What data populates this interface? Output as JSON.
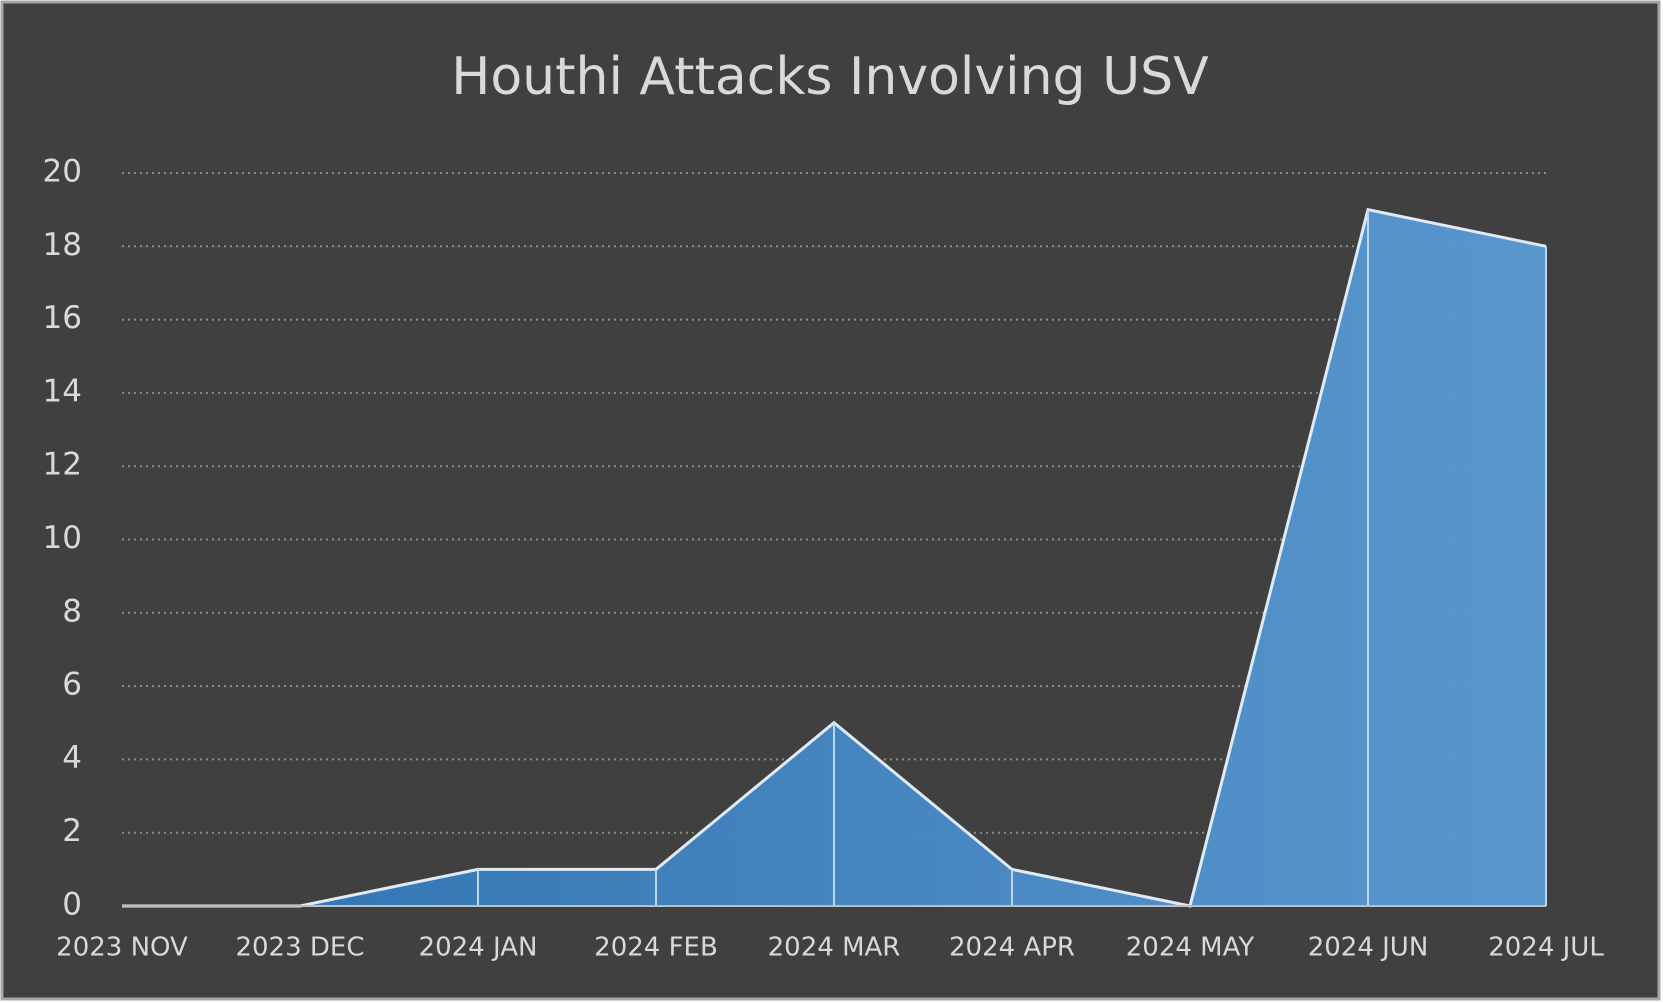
{
  "chart_data": {
    "type": "area",
    "title": "Houthi Attacks Involving USV",
    "categories": [
      "2023 NOV",
      "2023 DEC",
      "2024 JAN",
      "2024 FEB",
      "2024 MAR",
      "2024 APR",
      "2024 MAY",
      "2024 JUN",
      "2024 JUL"
    ],
    "values": [
      0,
      0,
      1,
      1,
      5,
      1,
      0,
      19,
      18
    ],
    "color": "#5b9bd5",
    "ylim": [
      0,
      20
    ],
    "yticks": [
      0,
      2,
      4,
      6,
      8,
      10,
      12,
      14,
      16,
      18,
      20
    ],
    "grid": true
  }
}
